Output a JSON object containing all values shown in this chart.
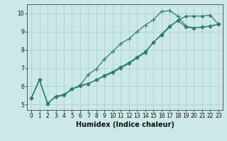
{
  "title": "",
  "xlabel": "Humidex (Indice chaleur)",
  "bg_color": "#cce8e8",
  "grid_color": "#aacccc",
  "line_color": "#2e7d6e",
  "xlim": [
    -0.5,
    23.5
  ],
  "ylim": [
    4.7,
    10.5
  ],
  "xticks": [
    0,
    1,
    2,
    3,
    4,
    5,
    6,
    7,
    8,
    9,
    10,
    11,
    12,
    13,
    14,
    15,
    16,
    17,
    18,
    19,
    20,
    21,
    22,
    23
  ],
  "yticks": [
    5,
    6,
    7,
    8,
    9,
    10
  ],
  "line1_x": [
    0,
    1,
    2,
    3,
    4,
    5,
    6,
    7,
    8,
    9,
    10,
    11,
    12,
    13,
    14,
    15,
    16,
    17,
    18,
    19,
    20,
    21,
    22,
    23
  ],
  "line1_y": [
    5.35,
    6.35,
    5.05,
    5.45,
    5.5,
    5.85,
    6.0,
    6.15,
    6.35,
    6.55,
    6.75,
    7.0,
    7.25,
    7.55,
    7.85,
    8.4,
    8.8,
    9.25,
    9.6,
    9.85,
    9.85,
    9.85,
    9.9,
    9.4
  ],
  "line2_x": [
    0,
    1,
    2,
    3,
    4,
    5,
    6,
    7,
    8,
    9,
    10,
    11,
    12,
    13,
    14,
    15,
    16,
    17,
    18,
    19,
    20,
    21,
    22,
    23
  ],
  "line2_y": [
    5.35,
    6.35,
    5.05,
    5.45,
    5.5,
    5.85,
    6.05,
    6.65,
    6.95,
    7.5,
    7.9,
    8.35,
    8.6,
    9.0,
    9.35,
    9.65,
    10.1,
    10.15,
    9.85,
    9.3,
    9.2,
    9.25,
    9.3,
    9.4
  ],
  "line3_x": [
    0,
    1,
    2,
    3,
    4,
    5,
    6,
    7,
    8,
    9,
    10,
    11,
    12,
    13,
    14,
    15,
    16,
    17,
    18,
    19,
    20,
    21,
    22,
    23
  ],
  "line3_y": [
    5.35,
    6.35,
    5.05,
    5.45,
    5.55,
    5.85,
    6.05,
    6.15,
    6.35,
    6.6,
    6.8,
    7.05,
    7.3,
    7.6,
    7.9,
    8.4,
    8.85,
    9.3,
    9.6,
    9.25,
    9.2,
    9.25,
    9.3,
    9.4
  ],
  "tick_fontsize": 5.5,
  "xlabel_fontsize": 7,
  "marker_size": 2.5,
  "linewidth": 0.9
}
